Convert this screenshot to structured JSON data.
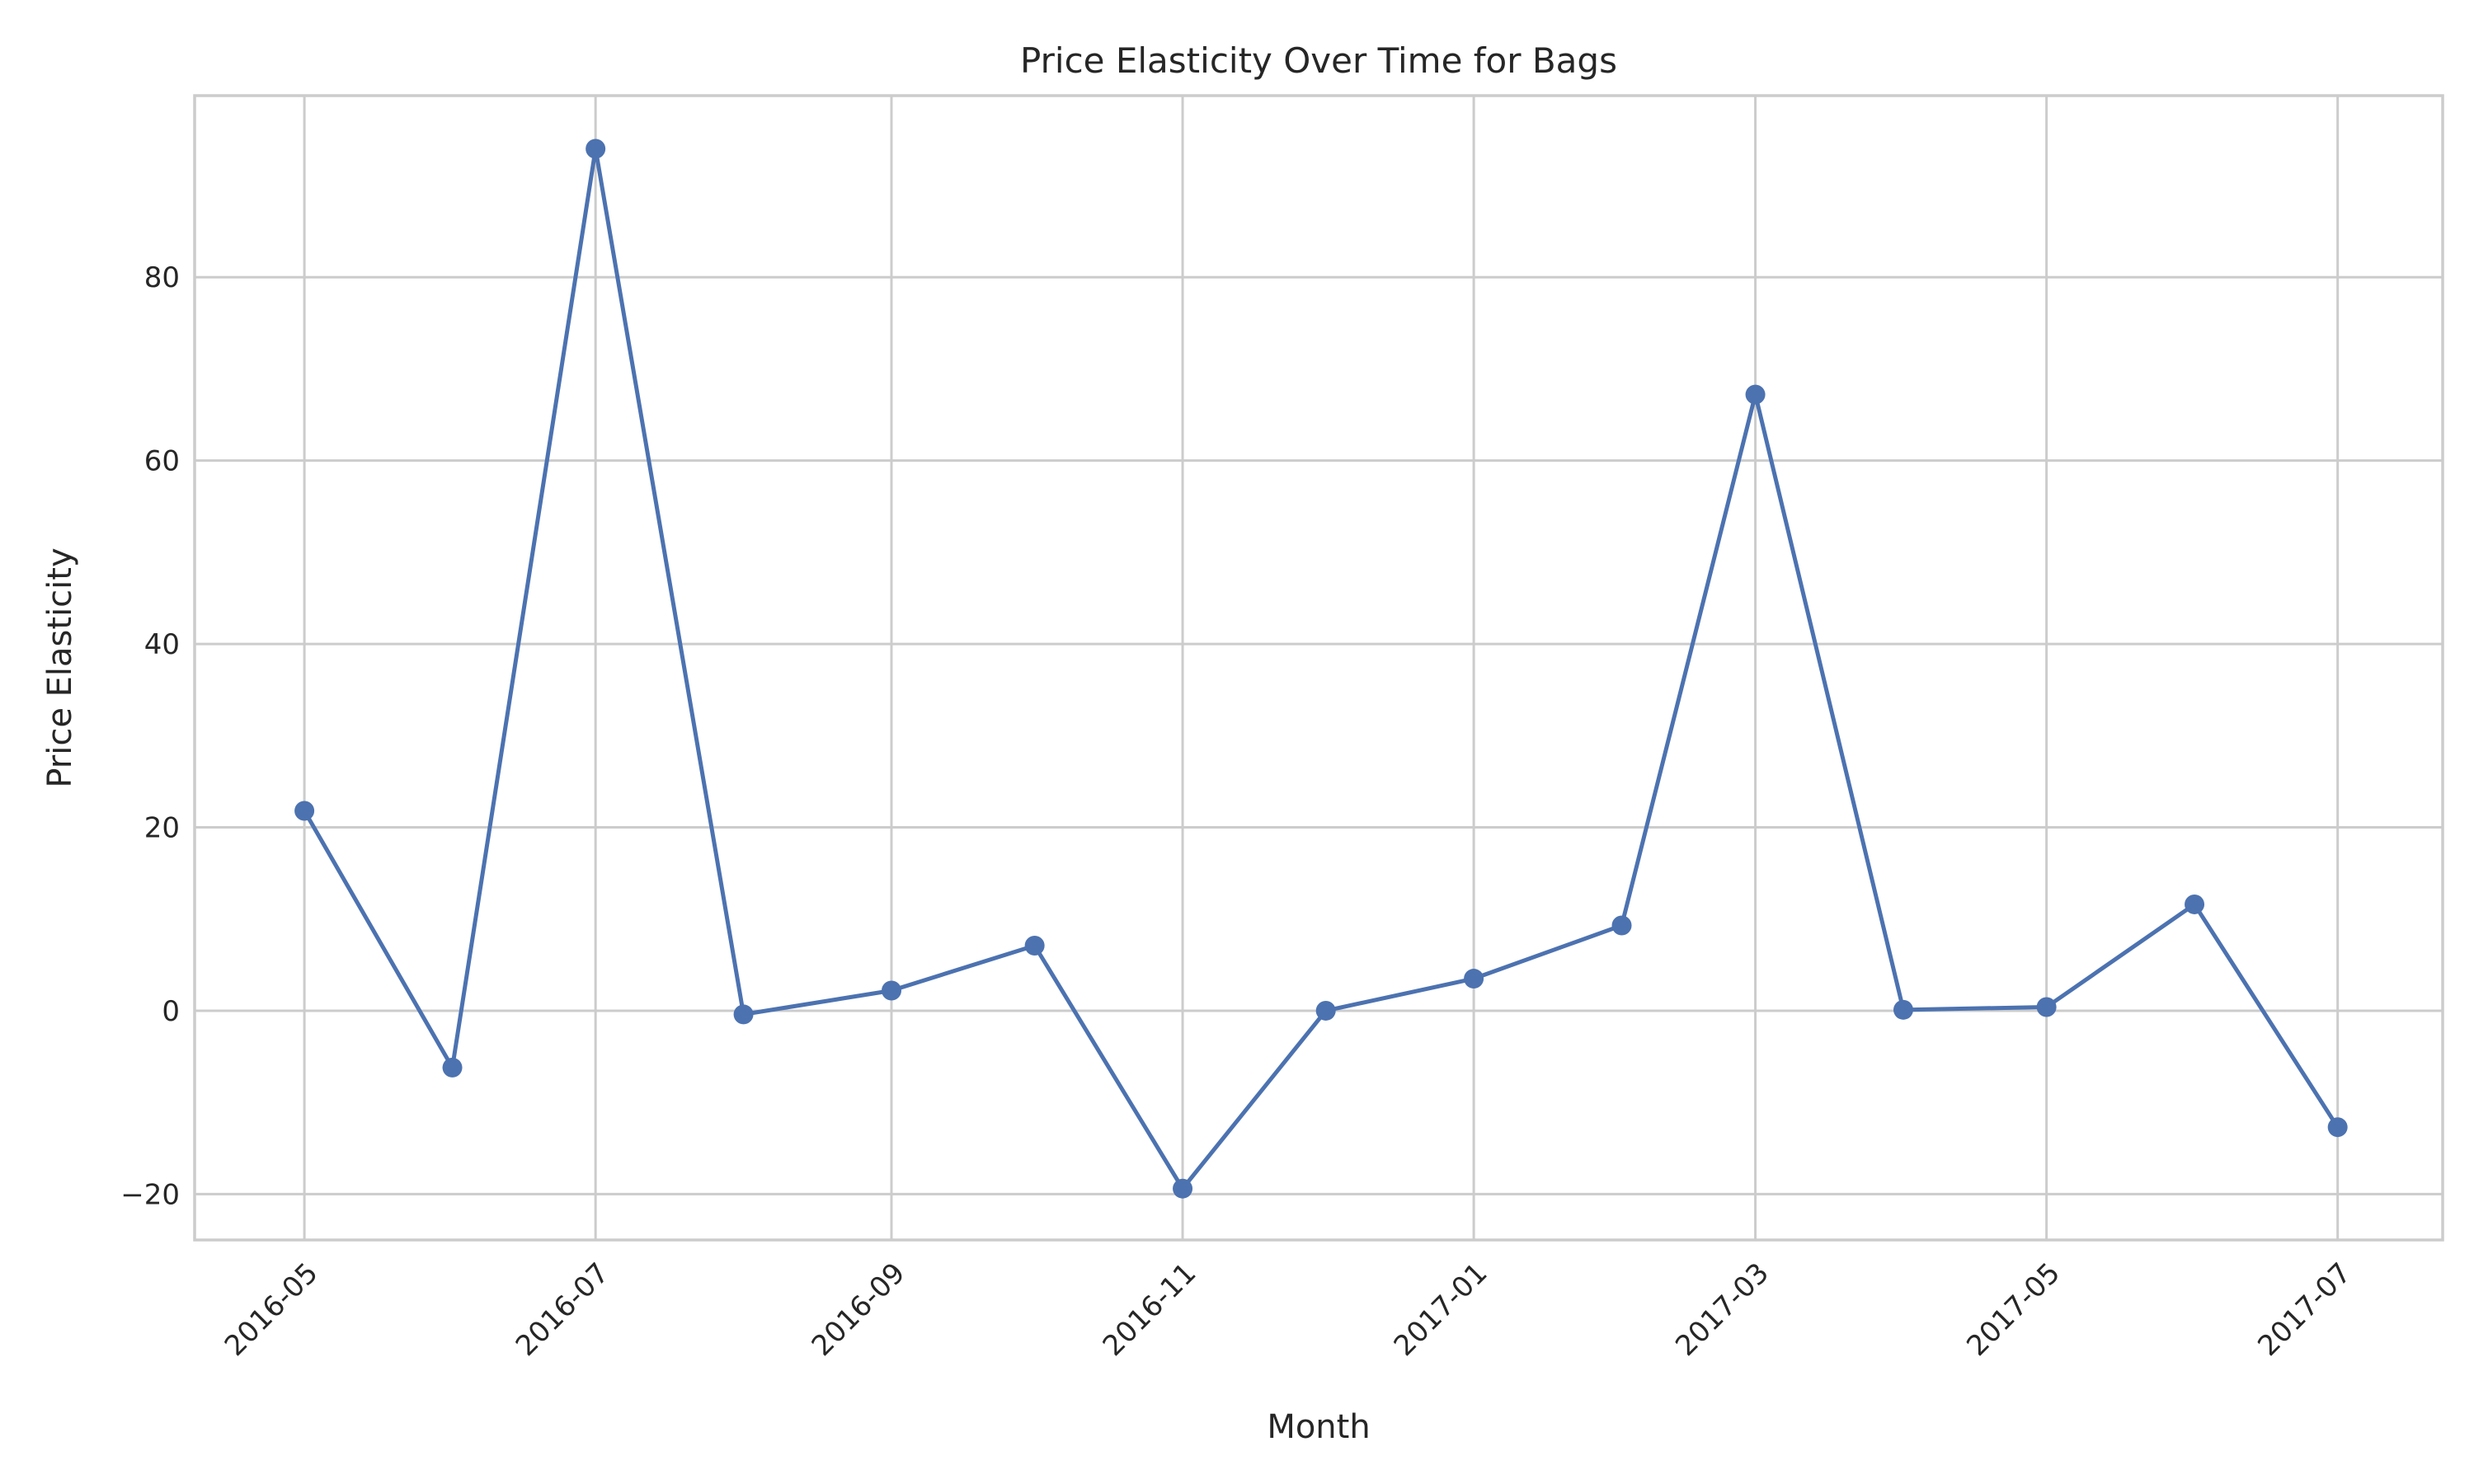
{
  "chart_data": {
    "type": "line",
    "title": "Price Elasticity Over Time for Bags",
    "xlabel": "Month",
    "ylabel": "Price Elasticity",
    "x": [
      "2016-05",
      "2016-06",
      "2016-07",
      "2016-08",
      "2016-09",
      "2016-10",
      "2016-11",
      "2016-12",
      "2017-01",
      "2017-02",
      "2017-03",
      "2017-04",
      "2017-05",
      "2017-06",
      "2017-07"
    ],
    "series": [
      {
        "values": [
          21.8,
          -6.2,
          94.0,
          -0.4,
          2.2,
          7.1,
          -19.4,
          0.0,
          3.5,
          9.3,
          67.2,
          0.1,
          0.4,
          11.6,
          -12.7
        ]
      }
    ],
    "x_ticks": [
      "2016-05",
      "2016-07",
      "2016-09",
      "2016-11",
      "2017-01",
      "2017-03",
      "2017-05",
      "2017-07"
    ],
    "y_ticks": [
      -20,
      0,
      20,
      40,
      60,
      80
    ],
    "xlim": [
      "2016-04-08",
      "2017-07-23"
    ],
    "ylim": [
      -25.0,
      99.8
    ],
    "grid": true,
    "line_color": "#4c72b0",
    "marker": "circle"
  }
}
